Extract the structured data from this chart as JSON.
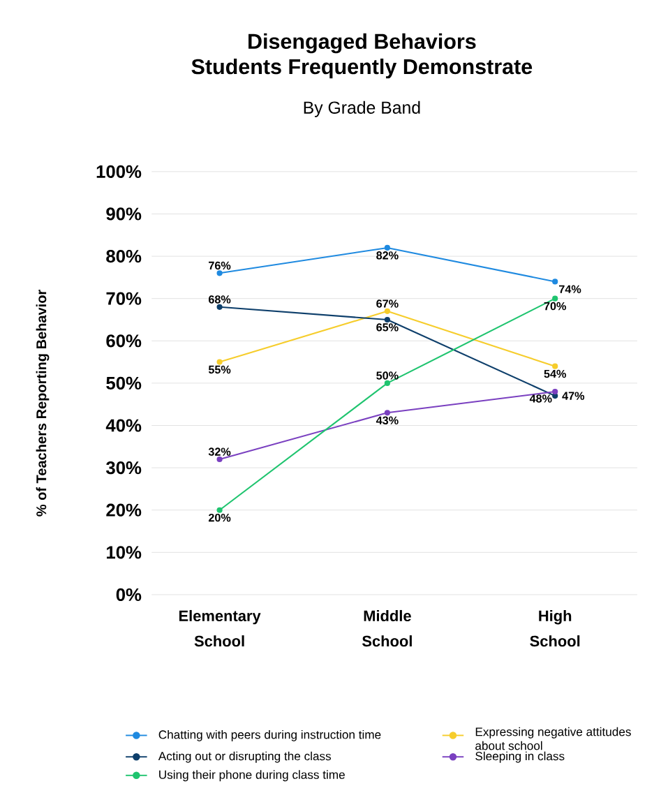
{
  "chart_data": {
    "type": "line",
    "title": "Disengaged Behaviors\nStudents Frequently Demonstrate",
    "subtitle": "By Grade Band",
    "ylabel": "% of Teachers Reporting Behavior",
    "categories": [
      "Elementary School",
      "Middle School",
      "High School"
    ],
    "series": [
      {
        "name": "Chatting with peers during instruction time",
        "color": "#1f8ae0",
        "values": [
          76,
          82,
          74
        ],
        "value_labels": [
          "76%",
          "82%",
          "74%"
        ]
      },
      {
        "name": "Expressing negative attitudes about school",
        "color": "#f6cd2c",
        "values": [
          55,
          67,
          54
        ],
        "value_labels": [
          "55%",
          "67%",
          "54%"
        ]
      },
      {
        "name": "Acting out or disrupting the class",
        "color": "#0e3f6b",
        "values": [
          68,
          65,
          47
        ],
        "value_labels": [
          "68%",
          "65%",
          "47%"
        ]
      },
      {
        "name": "Sleeping in class",
        "color": "#7a40c0",
        "values": [
          32,
          43,
          48
        ],
        "value_labels": [
          "32%",
          "43%",
          "48%"
        ]
      },
      {
        "name": "Using their phone during class time",
        "color": "#1fc46f",
        "values": [
          20,
          50,
          70
        ],
        "value_labels": [
          "20%",
          "50%",
          "70%"
        ]
      }
    ],
    "ylim": [
      0,
      100
    ],
    "yticks": [
      {
        "value": 0,
        "label": "0%"
      },
      {
        "value": 10,
        "label": "10%"
      },
      {
        "value": 20,
        "label": "20%"
      },
      {
        "value": 30,
        "label": "30%"
      },
      {
        "value": 40,
        "label": "40%"
      },
      {
        "value": 50,
        "label": "50%"
      },
      {
        "value": 60,
        "label": "60%"
      },
      {
        "value": 70,
        "label": "70%"
      },
      {
        "value": 80,
        "label": "80%"
      },
      {
        "value": 90,
        "label": "90%"
      },
      {
        "value": 100,
        "label": "100%"
      }
    ],
    "grid": "y",
    "legend": "bottom",
    "marker": "circle",
    "line_style": "solid"
  }
}
